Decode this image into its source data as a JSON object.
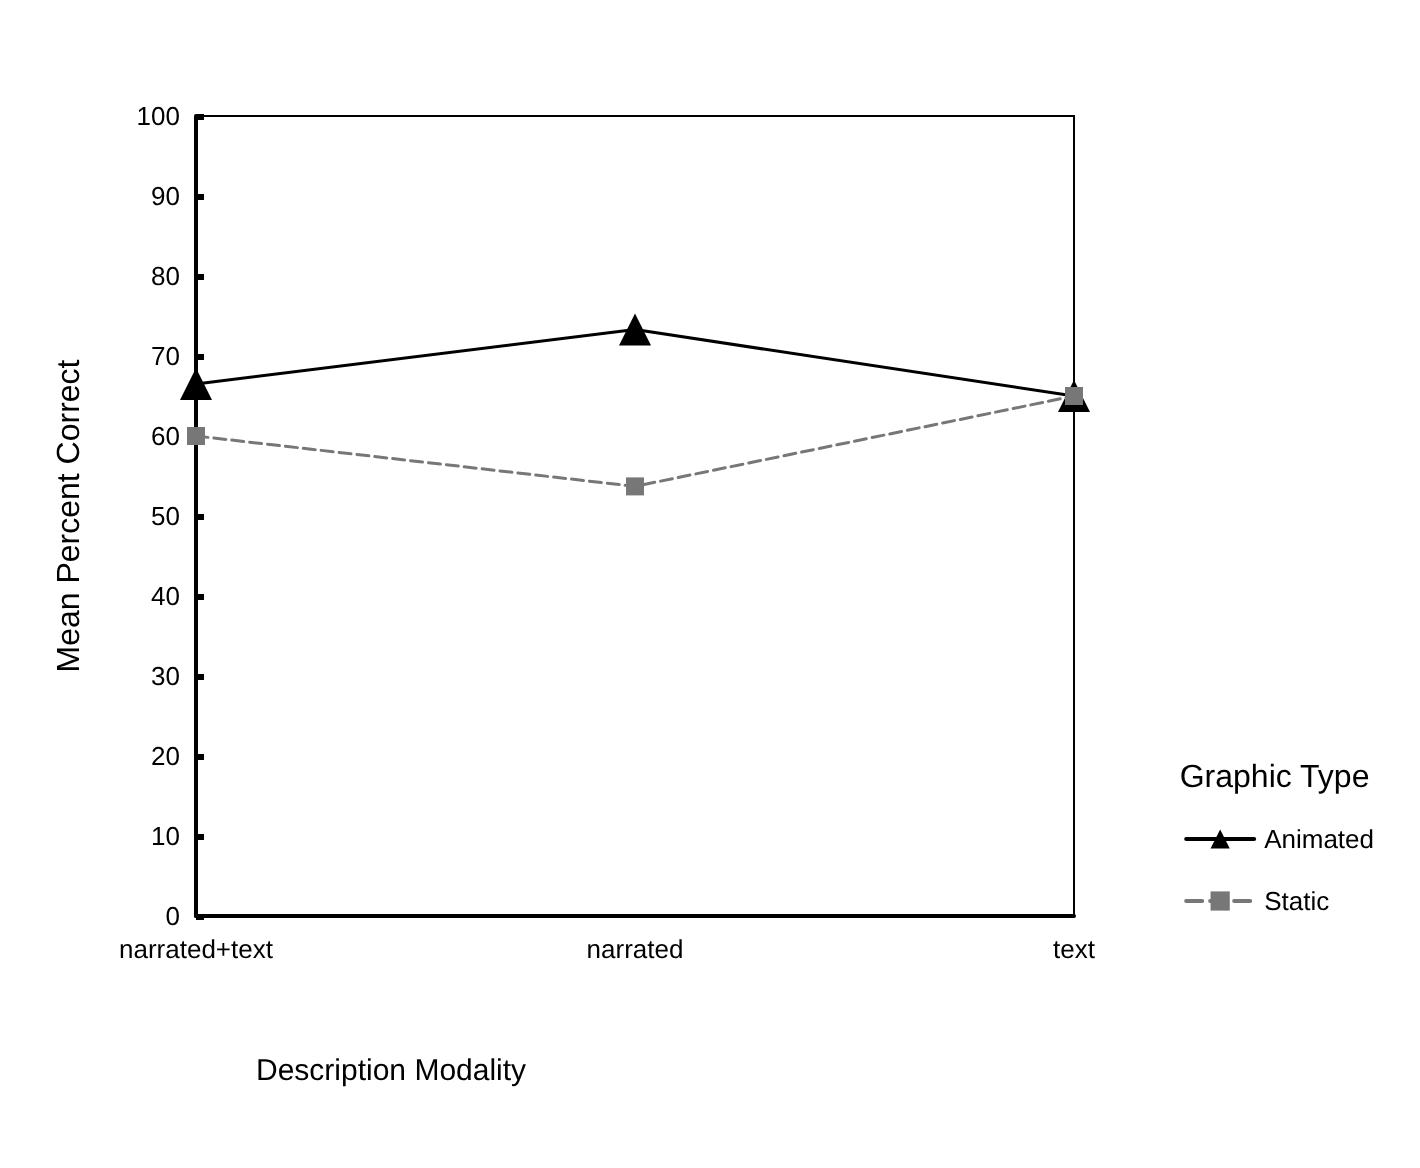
{
  "chart_data": {
    "type": "line",
    "xlabel": "Description Modality",
    "ylabel": "Mean Percent Correct",
    "legend_title": "Graphic Type",
    "categories": [
      "narrated+text",
      "narrated",
      "text"
    ],
    "series": [
      {
        "name": "Animated",
        "color": "#000000",
        "values": [
          66.5,
          73.3,
          65
        ],
        "marker": "triangle",
        "line_style": "solid"
      },
      {
        "name": "Static",
        "color": "#777777",
        "values": [
          60,
          53.7,
          65
        ],
        "marker": "square",
        "line_style": "dashed"
      }
    ],
    "ylim": [
      0,
      100
    ],
    "yticks": [
      0,
      10,
      20,
      30,
      40,
      50,
      60,
      70,
      80,
      90,
      100
    ],
    "grid": false,
    "legend": "right"
  }
}
